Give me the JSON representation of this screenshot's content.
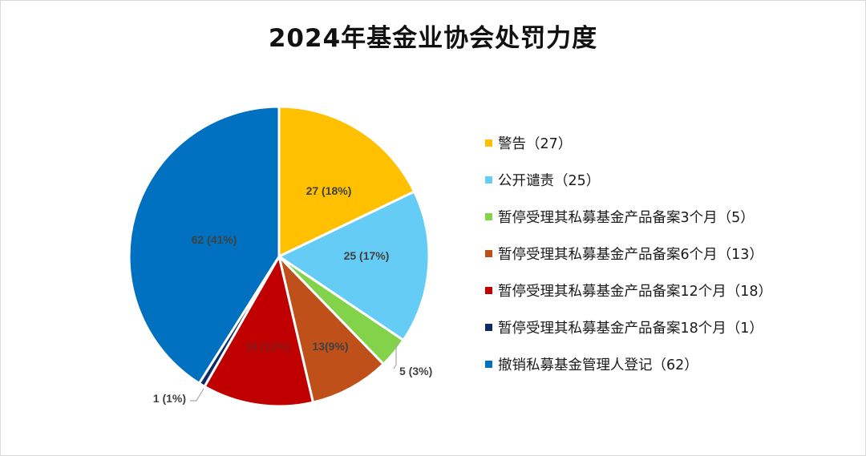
{
  "chart_data": {
    "type": "pie",
    "title": "2024年基金业协会处罚力度",
    "slices": [
      {
        "label": "警告",
        "value": 27,
        "percent": "18%",
        "legend": "警告（27）",
        "data_label": "27 (18%)",
        "color": "#FFC000",
        "label_color": "#404040"
      },
      {
        "label": "公开谴责",
        "value": 25,
        "percent": "17%",
        "legend": "公开谴责（25）",
        "data_label": "25 (17%)",
        "color": "#65CDF5",
        "label_color": "#404040"
      },
      {
        "label": "暂停受理其私募基金产品备案3个月",
        "value": 5,
        "percent": "3%",
        "legend": "暂停受理其私募基金产品备案3个月（5）",
        "data_label": "5 (3%)",
        "color": "#82D24A",
        "label_color": "#404040"
      },
      {
        "label": "暂停受理其私募基金产品备案6个月",
        "value": 13,
        "percent": "9%",
        "legend": "暂停受理其私募基金产品备案6个月（13）",
        "data_label": "13(9%)",
        "color": "#C0501A",
        "label_color": "#404040"
      },
      {
        "label": "暂停受理其私募基金产品备案12个月",
        "value": 18,
        "percent": "12%",
        "legend": "暂停受理其私募基金产品备案12个月（18）",
        "data_label": "18 (12%)",
        "color": "#C00000",
        "label_color": "#7f1a1a"
      },
      {
        "label": "暂停受理其私募基金产品备案18个月",
        "value": 1,
        "percent": "1%",
        "legend": "暂停受理其私募基金产品备案18个月（1）",
        "data_label": "1 (1%)",
        "color": "#0D2A66",
        "label_color": "#404040"
      },
      {
        "label": "撤销私募基金管理人登记",
        "value": 62,
        "percent": "41%",
        "legend": "撤销私募基金管理人登记（62）",
        "data_label": "62 (41%)",
        "color": "#0070C0",
        "label_color": "#404040"
      }
    ],
    "legend_position": "right"
  }
}
